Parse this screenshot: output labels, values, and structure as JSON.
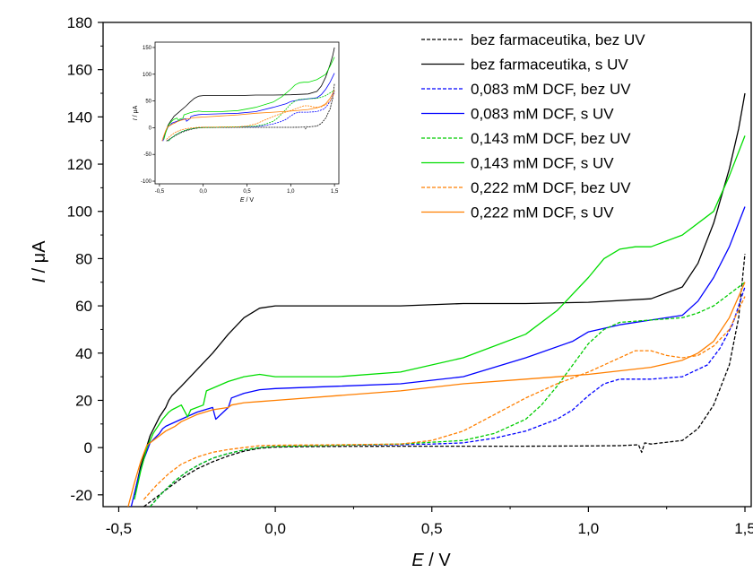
{
  "chart_data": {
    "type": "line",
    "xlabel_italic": "E",
    "xlabel_unit": " / V",
    "ylabel_italic": "I",
    "ylabel_unit": " /  μA",
    "xlim": [
      -0.55,
      1.52
    ],
    "ylim": [
      -25,
      180
    ],
    "xticks": [
      -0.5,
      0.0,
      0.5,
      1.0,
      1.5
    ],
    "xtick_labels": [
      "-0,5",
      "0,0",
      "0,5",
      "1,0",
      "1,5"
    ],
    "yticks": [
      -20,
      0,
      20,
      40,
      60,
      80,
      100,
      120,
      140,
      160,
      180
    ],
    "ytick_labels": [
      "-20",
      "0",
      "20",
      "40",
      "60",
      "80",
      "100",
      "120",
      "140",
      "160",
      "180"
    ],
    "grid": false,
    "legend_position": "top-right",
    "series": [
      {
        "name": "bez farmaceutika, bez UV",
        "color": "#000000",
        "dash": true,
        "x": [
          -0.42,
          -0.38,
          -0.34,
          -0.3,
          -0.25,
          -0.2,
          -0.15,
          -0.1,
          -0.05,
          0.0,
          0.1,
          0.2,
          0.4,
          0.6,
          0.8,
          1.0,
          1.1,
          1.16,
          1.17,
          1.18,
          1.2,
          1.3,
          1.35,
          1.4,
          1.45,
          1.48,
          1.5
        ],
        "y": [
          -25,
          -21,
          -17,
          -13,
          -9,
          -6,
          -3.5,
          -1.5,
          -0.3,
          0.2,
          0.4,
          0.5,
          0.6,
          0.6,
          0.6,
          0.7,
          0.8,
          1.2,
          -2,
          2,
          1.5,
          3,
          8,
          18,
          35,
          55,
          82
        ]
      },
      {
        "name": "bez farmaceutika, s UV",
        "color": "#000000",
        "dash": false,
        "x": [
          -0.45,
          -0.43,
          -0.4,
          -0.37,
          -0.35,
          -0.34,
          -0.33,
          -0.3,
          -0.25,
          -0.2,
          -0.15,
          -0.1,
          -0.05,
          0.0,
          0.2,
          0.4,
          0.6,
          0.8,
          1.0,
          1.2,
          1.3,
          1.35,
          1.4,
          1.45,
          1.48,
          1.5
        ],
        "y": [
          -20,
          -8,
          5,
          13,
          17,
          20,
          22,
          26,
          33,
          40,
          48,
          55,
          59,
          60,
          60,
          60,
          61,
          61,
          61.5,
          63,
          68,
          78,
          95,
          118,
          135,
          150
        ]
      },
      {
        "name": "0,083 mM DCF, bez UV",
        "color": "#0000ff",
        "dash": true,
        "x": [
          -0.4,
          -0.36,
          -0.32,
          -0.28,
          -0.24,
          -0.2,
          -0.15,
          -0.1,
          -0.05,
          0.0,
          0.2,
          0.4,
          0.5,
          0.6,
          0.7,
          0.8,
          0.9,
          0.95,
          1.0,
          1.05,
          1.1,
          1.2,
          1.3,
          1.38,
          1.42,
          1.46,
          1.5
        ],
        "y": [
          -25,
          -19,
          -14,
          -10,
          -7,
          -4.5,
          -2.5,
          -1,
          0,
          0.5,
          1,
          1.2,
          1.5,
          2,
          4,
          7,
          12,
          16,
          22,
          27,
          29,
          29,
          30,
          35,
          42,
          52,
          68
        ]
      },
      {
        "name": "0,083 mM DCF, s UV",
        "color": "#0000ff",
        "dash": false,
        "x": [
          -0.46,
          -0.44,
          -0.42,
          -0.4,
          -0.37,
          -0.36,
          -0.35,
          -0.3,
          -0.25,
          -0.2,
          -0.19,
          -0.15,
          -0.14,
          -0.1,
          -0.05,
          0.0,
          0.2,
          0.4,
          0.6,
          0.8,
          0.95,
          1.0,
          1.1,
          1.2,
          1.3,
          1.35,
          1.4,
          1.45,
          1.5
        ],
        "y": [
          -25,
          -14,
          -5,
          2,
          6,
          8,
          9,
          12,
          15,
          17,
          12,
          17,
          21,
          23,
          24.5,
          25,
          26,
          27,
          30,
          38,
          45,
          49,
          52,
          54,
          56,
          62,
          72,
          85,
          102
        ]
      },
      {
        "name": "0,143 mM DCF, bez UV",
        "color": "#00cc00",
        "dash": true,
        "x": [
          -0.4,
          -0.36,
          -0.32,
          -0.28,
          -0.24,
          -0.2,
          -0.15,
          -0.1,
          -0.05,
          0.0,
          0.2,
          0.4,
          0.6,
          0.7,
          0.8,
          0.85,
          0.9,
          0.95,
          1.0,
          1.05,
          1.1,
          1.2,
          1.3,
          1.35,
          1.4,
          1.45,
          1.5
        ],
        "y": [
          -25,
          -19,
          -14,
          -10,
          -7,
          -4.5,
          -2.5,
          -1,
          0,
          0.5,
          1,
          1.5,
          3,
          6,
          12,
          18,
          26,
          35,
          44,
          50,
          53,
          54,
          55,
          57,
          60,
          65,
          70
        ]
      },
      {
        "name": "0,143 mM DCF, s UV",
        "color": "#00dd00",
        "dash": false,
        "x": [
          -0.45,
          -0.43,
          -0.41,
          -0.39,
          -0.36,
          -0.34,
          -0.33,
          -0.3,
          -0.28,
          -0.27,
          -0.23,
          -0.22,
          -0.15,
          -0.1,
          -0.05,
          0.0,
          0.1,
          0.2,
          0.4,
          0.6,
          0.8,
          0.9,
          1.0,
          1.05,
          1.1,
          1.15,
          1.2,
          1.3,
          1.4,
          1.45,
          1.5
        ],
        "y": [
          -22,
          -10,
          0,
          6,
          12,
          15,
          16,
          18,
          13,
          16,
          18,
          24,
          28,
          30,
          31,
          30,
          30,
          30,
          32,
          38,
          48,
          58,
          72,
          80,
          84,
          85,
          85,
          90,
          100,
          115,
          132
        ]
      },
      {
        "name": "0,222 mM DCF, bez UV",
        "color": "#ff7f00",
        "dash": true,
        "x": [
          -0.42,
          -0.38,
          -0.34,
          -0.3,
          -0.25,
          -0.2,
          -0.15,
          -0.1,
          -0.05,
          0.0,
          0.2,
          0.4,
          0.5,
          0.6,
          0.7,
          0.8,
          0.9,
          1.0,
          1.1,
          1.15,
          1.2,
          1.25,
          1.3,
          1.35,
          1.4,
          1.45,
          1.5
        ],
        "y": [
          -22,
          -16,
          -11,
          -7,
          -4,
          -2,
          -0.8,
          0,
          0.8,
          1,
          1.2,
          1.5,
          3,
          7,
          14,
          21,
          27,
          32,
          38,
          41,
          41,
          39,
          38,
          39,
          43,
          50,
          64
        ]
      },
      {
        "name": "0,222 mM DCF, s UV",
        "color": "#ff7f00",
        "dash": false,
        "x": [
          -0.47,
          -0.45,
          -0.43,
          -0.41,
          -0.38,
          -0.35,
          -0.32,
          -0.3,
          -0.25,
          -0.2,
          -0.15,
          -0.14,
          -0.1,
          -0.05,
          0.0,
          0.2,
          0.4,
          0.6,
          0.8,
          1.0,
          1.2,
          1.3,
          1.35,
          1.4,
          1.45,
          1.5
        ],
        "y": [
          -25,
          -15,
          -6,
          1,
          4,
          7,
          9,
          11,
          14,
          16,
          17,
          18,
          19,
          19.5,
          20,
          22,
          24,
          27,
          29,
          31,
          34,
          37,
          40,
          45,
          55,
          70
        ]
      }
    ],
    "inset": {
      "xlabel_italic": "E",
      "xlabel_unit": " / V",
      "ylabel_italic": "I",
      "ylabel_unit": " /  μA",
      "xlim": [
        -0.55,
        1.55
      ],
      "ylim": [
        -105,
        160
      ],
      "xticks": [
        -0.5,
        0.0,
        0.5,
        1.0,
        1.5
      ],
      "xtick_labels": [
        "-0,5",
        "0,0",
        "0,5",
        "1,0",
        "1,5"
      ],
      "yticks": [
        -100,
        -50,
        0,
        50,
        100,
        150
      ],
      "ytick_labels": [
        "-100",
        "-50",
        "0",
        "50",
        "100",
        "150"
      ]
    }
  }
}
